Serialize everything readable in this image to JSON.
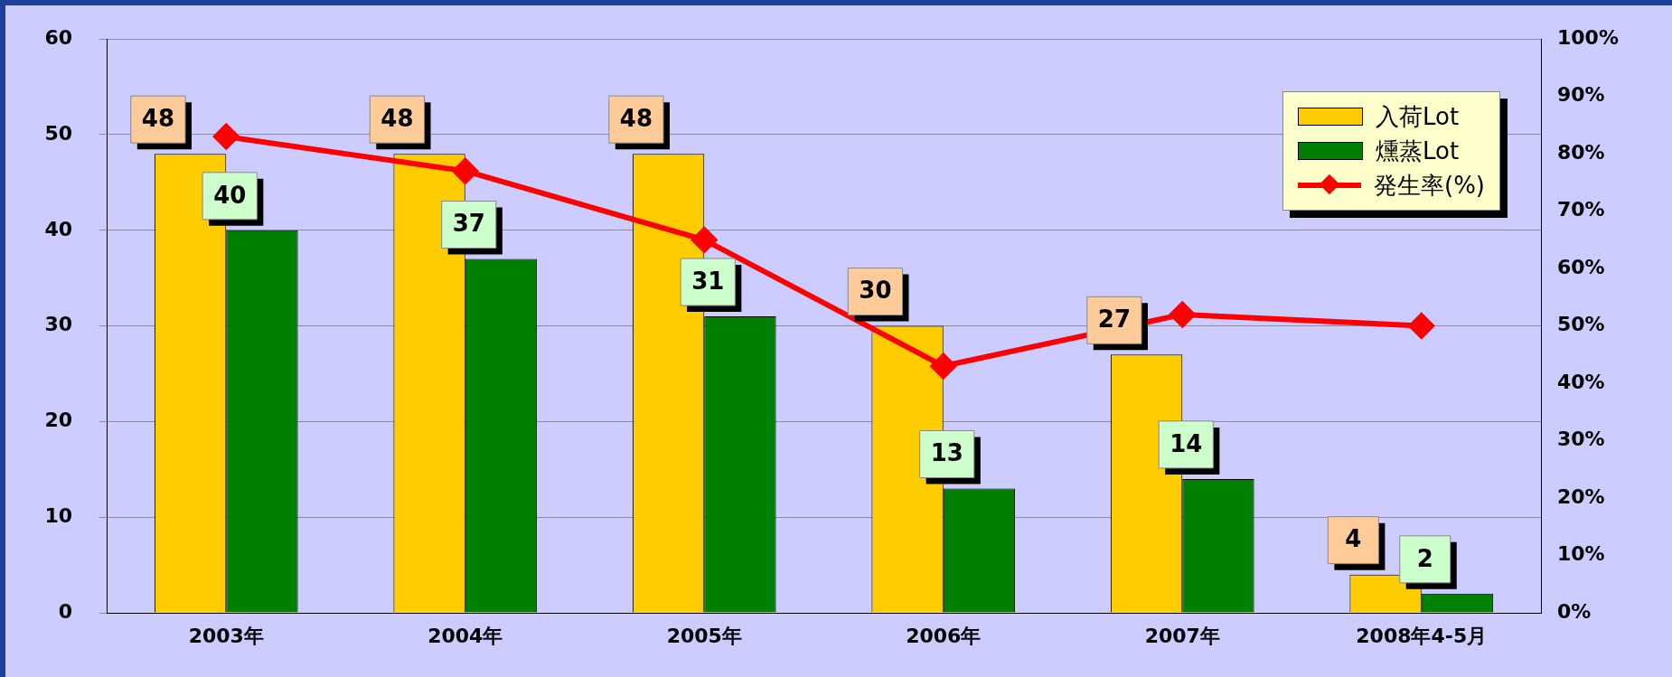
{
  "chart_data": {
    "type": "bar",
    "categories": [
      "2003年",
      "2004年",
      "2005年",
      "2006年",
      "2007年",
      "2008年4-5月"
    ],
    "series": [
      {
        "name": "入荷Lot",
        "color": "#ffcc00",
        "values": [
          48,
          48,
          48,
          30,
          27,
          4
        ],
        "value_labels": [
          "48",
          "48",
          "48",
          "30",
          "27",
          "4"
        ]
      },
      {
        "name": "燻蒸Lot",
        "color": "#008000",
        "values": [
          40,
          37,
          31,
          13,
          14,
          2
        ],
        "value_labels": [
          "40",
          "37",
          "31",
          "13",
          "14",
          "2"
        ]
      },
      {
        "name": "発生率(%)",
        "type": "line",
        "axis": "y2",
        "color": "#ff0000",
        "values": [
          83,
          77,
          65,
          43,
          52,
          50
        ]
      }
    ],
    "marker": "diamond",
    "grid": "y",
    "legend": "top right",
    "ylim": [
      0,
      60
    ],
    "yticks": [
      0,
      10,
      20,
      30,
      40,
      50,
      60
    ],
    "y2lim": [
      0,
      100
    ],
    "y2ticks": [
      {
        "value": 0,
        "label": "0%"
      },
      {
        "value": 10,
        "label": "10%"
      },
      {
        "value": 20,
        "label": "20%"
      },
      {
        "value": 30,
        "label": "30%"
      },
      {
        "value": 40,
        "label": "40%"
      },
      {
        "value": 50,
        "label": "50%"
      },
      {
        "value": 60,
        "label": "60%"
      },
      {
        "value": 70,
        "label": "70%"
      },
      {
        "value": 80,
        "label": "80%"
      },
      {
        "value": 90,
        "label": "90%"
      },
      {
        "value": 100,
        "label": "100%"
      }
    ]
  }
}
